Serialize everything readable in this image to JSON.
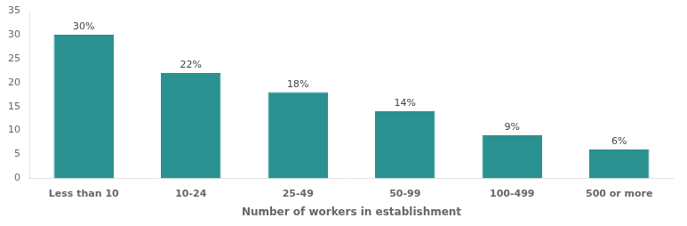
{
  "chart_data": {
    "type": "bar",
    "categories": [
      "Less than 10",
      "10-24",
      "25-49",
      "50-99",
      "100-499",
      "500 or more"
    ],
    "values": [
      30,
      22,
      18,
      14,
      9,
      6
    ],
    "value_labels": [
      "30%",
      "22%",
      "18%",
      "14%",
      "9%",
      "6%"
    ],
    "color": "#2a9090",
    "xlabel": "Number of workers in establishment",
    "ylim": [
      0,
      35
    ],
    "yticks": [
      0,
      5,
      10,
      15,
      20,
      25,
      30,
      35
    ],
    "grid": false,
    "data_labels": true
  }
}
